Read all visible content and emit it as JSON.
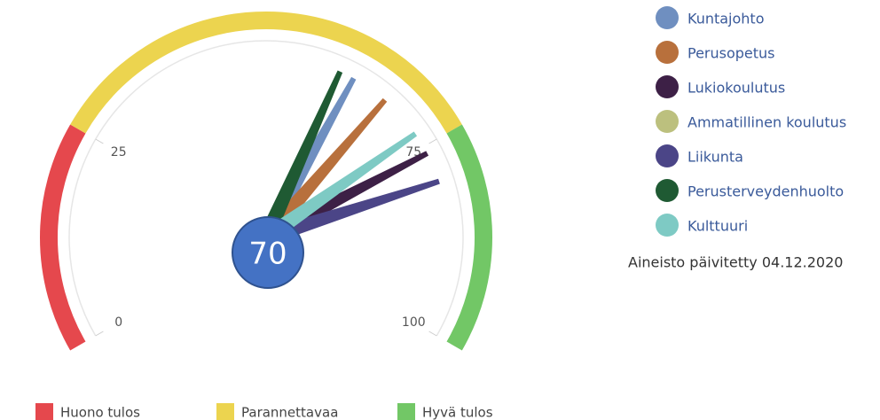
{
  "chart_data": {
    "type": "gauge",
    "value": 70,
    "ylim": [
      0,
      100
    ],
    "yticks": [
      0,
      25,
      75,
      100
    ],
    "bands": [
      {
        "name": "Huono tulos",
        "color": "#e5484d",
        "from": 0,
        "to": 25
      },
      {
        "name": "Parannettavaa",
        "color": "#ecd44f",
        "from": 25,
        "to": 75
      },
      {
        "name": "Hyvä tulos",
        "color": "#72c766",
        "from": 75,
        "to": 100
      }
    ],
    "series": [
      {
        "name": "Kuntajohto",
        "color": "#6f8fc0",
        "values": [
          62
        ]
      },
      {
        "name": "Perusopetus",
        "color": "#b8703c",
        "values": [
          67
        ]
      },
      {
        "name": "Lukiokoulutus",
        "color": "#3d2046",
        "values": [
          76
        ]
      },
      {
        "name": "Ammatillinen koulutus",
        "color": "#bcc07e",
        "values": [
          null
        ]
      },
      {
        "name": "Liikunta",
        "color": "#4b4587",
        "values": [
          80
        ]
      },
      {
        "name": "Perusterveydenhuolto",
        "color": "#1f5a33",
        "values": [
          60
        ]
      },
      {
        "name": "Kulttuuri",
        "color": "#7ecac4",
        "values": [
          73
        ]
      }
    ],
    "note": "Aineisto päivitetty 04.12.2020"
  }
}
